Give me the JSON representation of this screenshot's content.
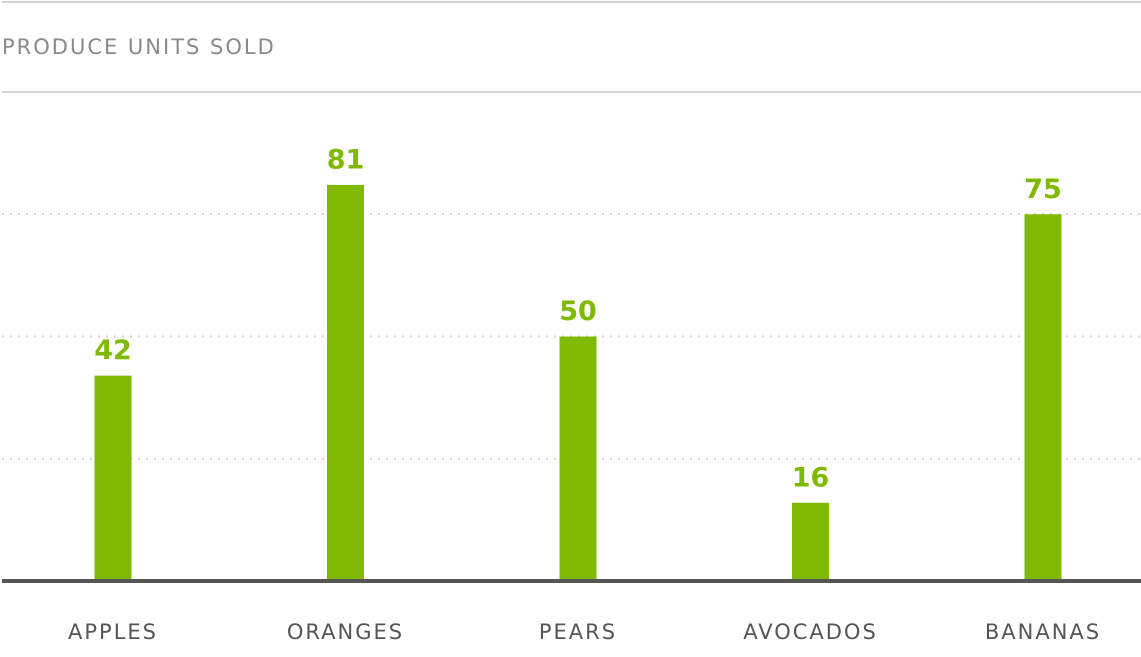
{
  "chart_data": {
    "type": "bar",
    "title": "PRODUCE UNITS SOLD",
    "categories": [
      "APPLES",
      "ORANGES",
      "PEARS",
      "AVOCADOS",
      "BANANAS"
    ],
    "values": [
      42,
      81,
      50,
      16,
      75
    ],
    "color": "#7fba00",
    "ylim": [
      0,
      100
    ],
    "yticks": [
      0,
      25,
      50,
      75,
      100
    ],
    "grid": true,
    "tick_labels": false
  }
}
